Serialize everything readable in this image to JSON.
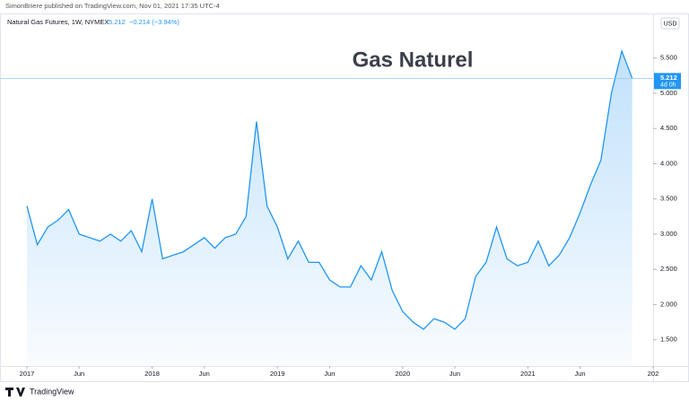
{
  "chart_data": {
    "type": "area",
    "publisher_note": "SimonBriere published on TradingView.com, Nov 01, 2021 17:35 UTC-4",
    "symbol": "Natural Gas Futures, 1W, NYMEX",
    "last_price": 5.212,
    "change": "−0.214 (−3.94%)",
    "currency": "USD",
    "countdown": "4d 0h",
    "title": "Gas Naturel",
    "brand": "TradingView",
    "color": "#2196f3",
    "x": [
      "2017-01",
      "2017-02",
      "2017-03",
      "2017-04",
      "2017-05",
      "2017-06",
      "2017-07",
      "2017-08",
      "2017-09",
      "2017-10",
      "2017-11",
      "2017-12",
      "2018-01",
      "2018-02",
      "2018-03",
      "2018-04",
      "2018-05",
      "2018-06",
      "2018-07",
      "2018-08",
      "2018-09",
      "2018-10",
      "2018-11",
      "2018-12",
      "2019-01",
      "2019-02",
      "2019-03",
      "2019-04",
      "2019-05",
      "2019-06",
      "2019-07",
      "2019-08",
      "2019-09",
      "2019-10",
      "2019-11",
      "2019-12",
      "2020-01",
      "2020-02",
      "2020-03",
      "2020-04",
      "2020-05",
      "2020-06",
      "2020-07",
      "2020-08",
      "2020-09",
      "2020-10",
      "2020-11",
      "2020-12",
      "2021-01",
      "2021-02",
      "2021-03",
      "2021-04",
      "2021-05",
      "2021-06",
      "2021-07",
      "2021-08",
      "2021-09",
      "2021-10",
      "2021-11"
    ],
    "values": [
      3.4,
      2.85,
      3.1,
      3.2,
      3.35,
      3.0,
      2.95,
      2.9,
      3.0,
      2.9,
      3.05,
      2.75,
      3.5,
      2.65,
      2.7,
      2.75,
      2.85,
      2.95,
      2.8,
      2.95,
      3.0,
      3.25,
      4.6,
      3.4,
      3.1,
      2.65,
      2.9,
      2.6,
      2.6,
      2.35,
      2.25,
      2.25,
      2.55,
      2.35,
      2.75,
      2.2,
      1.9,
      1.75,
      1.65,
      1.8,
      1.75,
      1.65,
      1.8,
      2.4,
      2.6,
      3.1,
      2.65,
      2.55,
      2.6,
      2.9,
      2.55,
      2.7,
      2.95,
      3.3,
      3.7,
      4.05,
      5.0,
      5.6,
      5.212
    ],
    "ylim": [
      1.14,
      6.07
    ],
    "yticks": [
      {
        "value": 1.5,
        "label": "1.500"
      },
      {
        "value": 2,
        "label": "2.000"
      },
      {
        "value": 2.5,
        "label": "2.500"
      },
      {
        "value": 3,
        "label": "3.000"
      },
      {
        "value": 3.5,
        "label": "3.500"
      },
      {
        "value": 4,
        "label": "4.000"
      },
      {
        "value": 4.5,
        "label": "4.500"
      },
      {
        "value": 5,
        "label": "5.000"
      },
      {
        "value": 5.5,
        "label": "5.500"
      }
    ],
    "xticks": [
      {
        "value": "2017-01",
        "label": "2017"
      },
      {
        "value": "2017-06",
        "label": "Jun"
      },
      {
        "value": "2018-01",
        "label": "2018"
      },
      {
        "value": "2018-06",
        "label": "Jun"
      },
      {
        "value": "2019-01",
        "label": "2019"
      },
      {
        "value": "2019-06",
        "label": "Jun"
      },
      {
        "value": "2020-01",
        "label": "2020"
      },
      {
        "value": "2020-06",
        "label": "Jun"
      },
      {
        "value": "2021-01",
        "label": "2021"
      },
      {
        "value": "2021-06",
        "label": "Jun"
      },
      {
        "value": "2022-01",
        "label": "202"
      }
    ]
  }
}
